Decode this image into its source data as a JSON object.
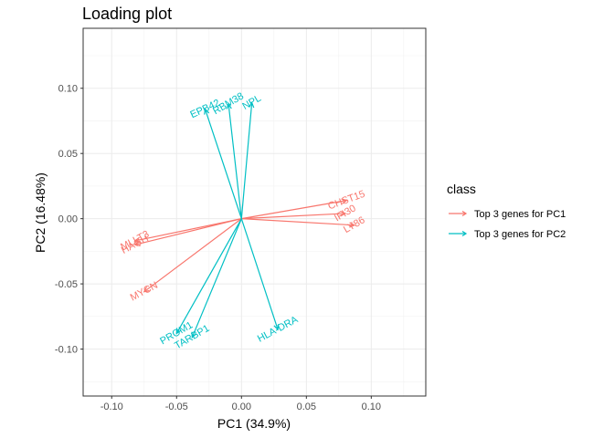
{
  "chart_data": {
    "type": "biplot",
    "title": "Loading plot",
    "xlabel": "PC1 (34.9%)",
    "ylabel": "PC2 (16.48%)",
    "xlim": [
      -0.122,
      0.142
    ],
    "ylim": [
      -0.136,
      0.146
    ],
    "x_ticks": [
      -0.1,
      -0.05,
      0.0,
      0.05,
      0.1
    ],
    "x_tick_labels": [
      "-0.10",
      "-0.05",
      "0.00",
      "0.05",
      "0.10"
    ],
    "y_ticks": [
      -0.1,
      -0.05,
      0.0,
      0.05,
      0.1
    ],
    "y_tick_labels": [
      "-0.10",
      "-0.05",
      "0.00",
      "0.05",
      "0.10"
    ],
    "grid": true,
    "legend": {
      "title": "class",
      "placement": "right",
      "entries": [
        {
          "label": "Top 3 genes for PC1",
          "color": "#F8766D"
        },
        {
          "label": "Top 3 genes for PC2",
          "color": "#00BFC4"
        }
      ]
    },
    "series": [
      {
        "name": "Top 3 genes for PC1",
        "color": "#F8766D",
        "arrows": [
          {
            "gene": "CHST15",
            "x": 0.081,
            "y": 0.014,
            "label_angle": -20
          },
          {
            "gene": "IFI30",
            "x": 0.08,
            "y": 0.004,
            "label_angle": -30
          },
          {
            "gene": "LY86",
            "x": 0.087,
            "y": -0.005,
            "label_angle": -30
          },
          {
            "gene": "MLLT3",
            "x": -0.082,
            "y": -0.017,
            "label_angle": -28
          },
          {
            "gene": "HAGH",
            "x": -0.082,
            "y": -0.02,
            "label_angle": -28
          },
          {
            "gene": "MYCN",
            "x": -0.075,
            "y": -0.056,
            "label_angle": -28
          }
        ]
      },
      {
        "name": "Top 3 genes for PC2",
        "color": "#00BFC4",
        "arrows": [
          {
            "gene": "EPB42",
            "x": -0.028,
            "y": 0.084,
            "label_angle": -25
          },
          {
            "gene": "RBM38",
            "x": -0.01,
            "y": 0.088,
            "label_angle": -30
          },
          {
            "gene": "NPL",
            "x": 0.008,
            "y": 0.089,
            "label_angle": -30
          },
          {
            "gene": "PROM1",
            "x": -0.05,
            "y": -0.088,
            "label_angle": -30
          },
          {
            "gene": "TARBP1",
            "x": -0.038,
            "y": -0.091,
            "label_angle": -30
          },
          {
            "gene": "HLA-DRA",
            "x": 0.028,
            "y": -0.085,
            "label_angle": -28
          }
        ]
      }
    ]
  }
}
